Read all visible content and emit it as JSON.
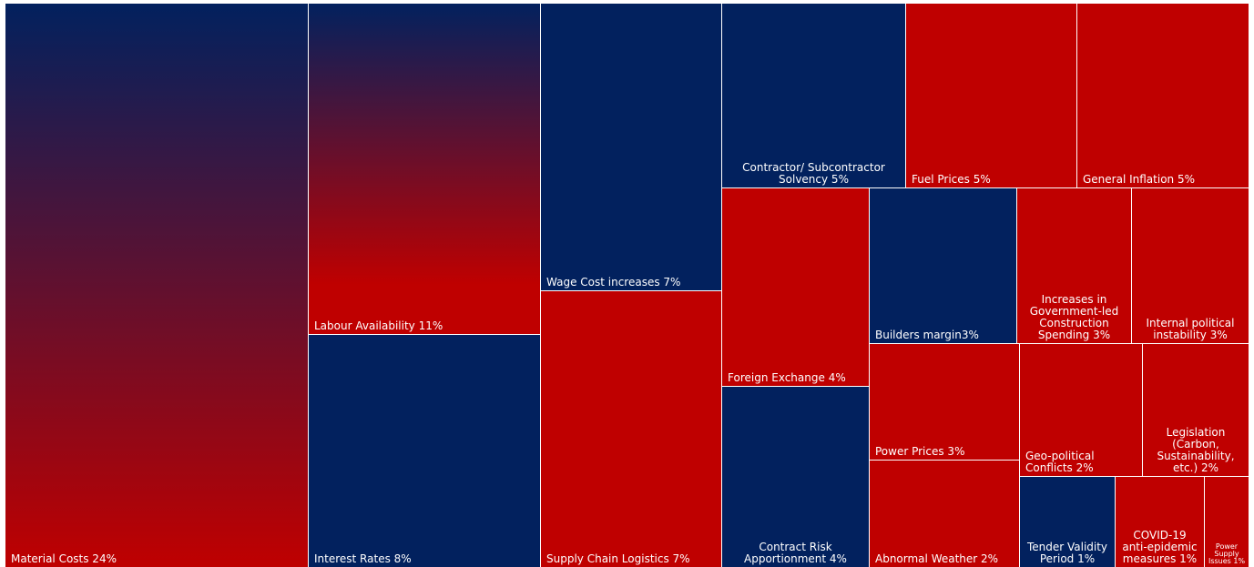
{
  "colors": {
    "navy": "#02215e",
    "red": "#bf0000",
    "background": "#ffffff"
  },
  "chart_data": {
    "type": "treemap",
    "title": "",
    "items": [
      {
        "id": "material-costs",
        "label": "Material Costs 24%",
        "value": 24,
        "fill": "gradient-navy-red"
      },
      {
        "id": "labour-availability",
        "label": "Labour Availability 11%",
        "value": 11,
        "fill": "gradient-navy-red"
      },
      {
        "id": "interest-rates",
        "label": "Interest Rates 8%",
        "value": 8,
        "fill": "navy"
      },
      {
        "id": "wage-cost-increases",
        "label": "Wage Cost increases 7%",
        "value": 7,
        "fill": "navy"
      },
      {
        "id": "supply-chain-logistics",
        "label": "Supply Chain Logistics 7%",
        "value": 7,
        "fill": "red"
      },
      {
        "id": "contractor-solvency",
        "label": "Contractor/ Subcontractor\nSolvency 5%",
        "value": 5,
        "fill": "navy"
      },
      {
        "id": "fuel-prices",
        "label": "Fuel Prices 5%",
        "value": 5,
        "fill": "red"
      },
      {
        "id": "general-inflation",
        "label": "General Inflation 5%",
        "value": 5,
        "fill": "red"
      },
      {
        "id": "foreign-exchange",
        "label": "Foreign Exchange 4%",
        "value": 4,
        "fill": "red"
      },
      {
        "id": "contract-risk",
        "label": "Contract Risk\nApportionment 4%",
        "value": 4,
        "fill": "navy"
      },
      {
        "id": "builders-margin",
        "label": "Builders margin3%",
        "value": 3,
        "fill": "navy"
      },
      {
        "id": "government-spending",
        "label": "Increases in\nGovernment-led\nConstruction\nSpending 3%",
        "value": 3,
        "fill": "red"
      },
      {
        "id": "internal-political",
        "label": "Internal political\ninstability 3%",
        "value": 3,
        "fill": "red"
      },
      {
        "id": "power-prices",
        "label": "Power Prices 3%",
        "value": 3,
        "fill": "red"
      },
      {
        "id": "abnormal-weather",
        "label": "Abnormal Weather 2%",
        "value": 2,
        "fill": "red"
      },
      {
        "id": "geo-political",
        "label": "Geo-political\nConflicts 2%",
        "value": 2,
        "fill": "red"
      },
      {
        "id": "legislation",
        "label": "Legislation\n(Carbon,\nSustainability,\netc.) 2%",
        "value": 2,
        "fill": "red"
      },
      {
        "id": "tender-validity",
        "label": "Tender Validity\nPeriod 1%",
        "value": 1,
        "fill": "navy"
      },
      {
        "id": "covid-19",
        "label": "COVID-19\nanti-epidemic\nmeasures 1%",
        "value": 1,
        "fill": "red"
      },
      {
        "id": "power-supply",
        "label": "Power\nSupply\nIssues 1%",
        "value": 1,
        "fill": "red"
      }
    ]
  }
}
